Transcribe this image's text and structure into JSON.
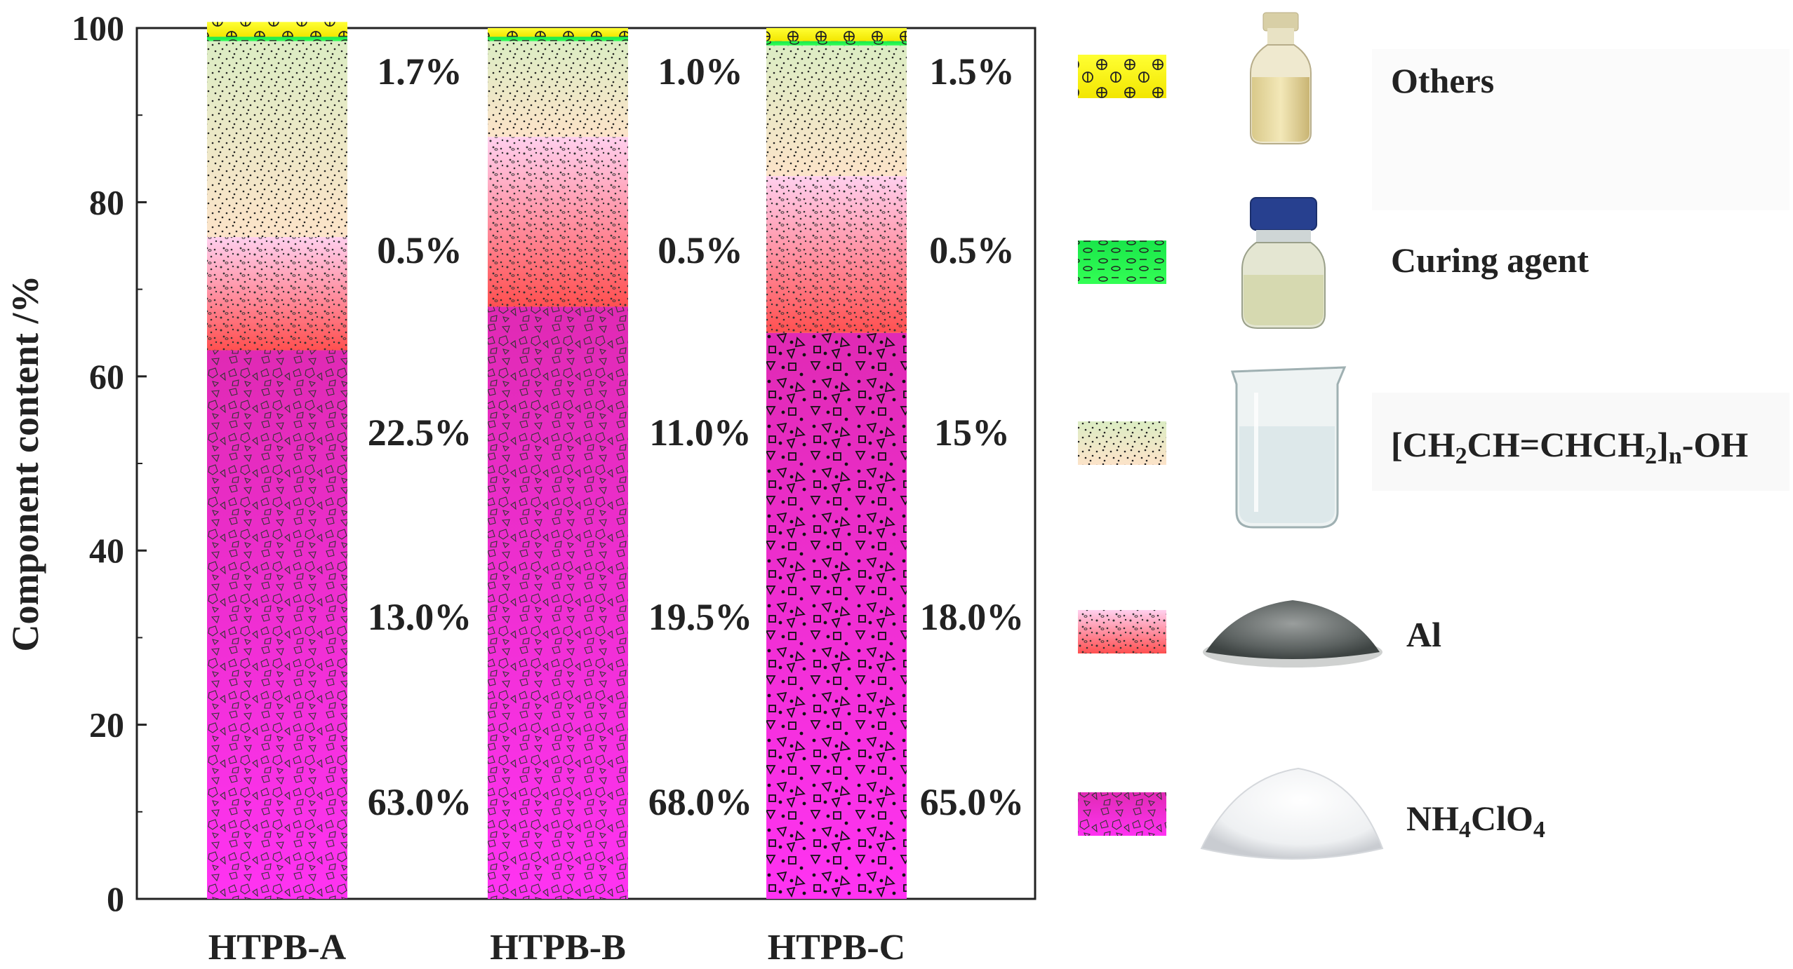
{
  "chart_data": {
    "type": "bar",
    "stacked": true,
    "ylabel": "Component content /%",
    "ylim": [
      0,
      100
    ],
    "yticks": [
      0,
      20,
      40,
      60,
      80,
      100
    ],
    "categories": [
      "HTPB-A",
      "HTPB-B",
      "HTPB-C"
    ],
    "series": [
      {
        "name": "NH4ClO4",
        "values": [
          63.0,
          68.0,
          65.0
        ]
      },
      {
        "name": "Al",
        "values": [
          13.0,
          19.5,
          18.0
        ]
      },
      {
        "name": "[CH2CH=CHCH2]n-OH",
        "values": [
          22.5,
          11.0,
          15.0
        ]
      },
      {
        "name": "Curing agent",
        "values": [
          0.5,
          0.5,
          0.5
        ]
      },
      {
        "name": "Others",
        "values": [
          1.7,
          1.0,
          1.5
        ]
      }
    ],
    "value_labels": [
      [
        "63.0%",
        "13.0%",
        "22.5%",
        "0.5%",
        "1.7%"
      ],
      [
        "68.0%",
        "19.5%",
        "11.0%",
        "0.5%",
        "1.0%"
      ],
      [
        "65.0%",
        "18.0%",
        "15%",
        "0.5%",
        "1.5%"
      ]
    ],
    "legend": {
      "placement": "right",
      "entries": [
        {
          "label": "Others",
          "image": "yellowish liquid in glass bottle"
        },
        {
          "label": "Curing agent",
          "image": "pale liquid in blue-capped reagent bottle"
        },
        {
          "label": "[CH2CH=CHCH2]n-OH",
          "image": "clear liquid in glass beaker"
        },
        {
          "label": "Al",
          "image": "grey aluminium powder pile"
        },
        {
          "label": "NH4ClO4",
          "image": "white crystalline powder pile"
        }
      ]
    },
    "colors": {
      "NH4ClO4": [
        "#ff33ee",
        "#e02aa8"
      ],
      "Al": [
        "#ffd2ec",
        "#ff6060"
      ],
      "[CH2CH=CHCH2]n-OH": [
        "#dfeec7",
        "#fbe3c9"
      ],
      "Curing agent": "#22ee44",
      "Others": "#ffff00"
    },
    "grid": false
  }
}
